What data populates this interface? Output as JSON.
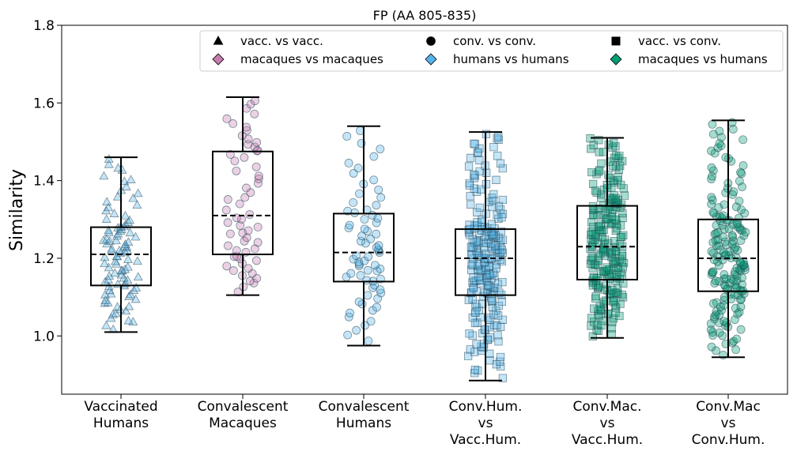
{
  "chart_data": {
    "type": "box",
    "title": "FP (AA 805-835)",
    "xlabel": "",
    "ylabel": "Similarity",
    "ylim": [
      0.85,
      1.8
    ],
    "yticks": [
      1.0,
      1.2,
      1.4,
      1.6,
      1.8
    ],
    "ytick_labels": [
      "1.0",
      "1.2",
      "1.4",
      "1.6",
      "1.8"
    ],
    "grid": false,
    "legend_position": "top-right",
    "legend": [
      {
        "label": "vacc. vs vacc.",
        "marker": "triangle",
        "color": "#000000"
      },
      {
        "label": "conv. vs conv.",
        "marker": "circle",
        "color": "#000000"
      },
      {
        "label": "vacc. vs conv.",
        "marker": "square",
        "color": "#000000"
      },
      {
        "label": "macaques vs macaques",
        "marker": "diamond",
        "color": "#c77cae"
      },
      {
        "label": "humans vs humans",
        "marker": "diamond",
        "color": "#56b4e9"
      },
      {
        "label": "macaques vs humans",
        "marker": "diamond",
        "color": "#009e73"
      }
    ],
    "groups": [
      {
        "label_lines": [
          "Vaccinated",
          "Humans"
        ],
        "marker": "triangle",
        "color": "#56b4e9",
        "n": 95,
        "min": 1.01,
        "q1": 1.13,
        "median": 1.21,
        "q3": 1.28,
        "max": 1.46,
        "seed": 11
      },
      {
        "label_lines": [
          "Convalescent",
          "Macaques"
        ],
        "marker": "circle",
        "color": "#c77cae",
        "n": 60,
        "min": 1.105,
        "q1": 1.21,
        "median": 1.31,
        "q3": 1.475,
        "max": 1.615,
        "seed": 23
      },
      {
        "label_lines": [
          "Convalescent",
          "Humans"
        ],
        "marker": "circle",
        "color": "#56b4e9",
        "n": 70,
        "min": 0.975,
        "q1": 1.14,
        "median": 1.215,
        "q3": 1.315,
        "max": 1.54,
        "seed": 37
      },
      {
        "label_lines": [
          "Conv.Hum.",
          "vs",
          "Vacc.Hum."
        ],
        "marker": "square",
        "color": "#56b4e9",
        "n": 230,
        "min": 0.885,
        "q1": 1.105,
        "median": 1.2,
        "q3": 1.275,
        "max": 1.525,
        "seed": 41
      },
      {
        "label_lines": [
          "Conv.Mac.",
          "vs",
          "Vacc.Hum."
        ],
        "marker": "square",
        "color": "#009e73",
        "n": 230,
        "min": 0.995,
        "q1": 1.145,
        "median": 1.23,
        "q3": 1.335,
        "max": 1.51,
        "seed": 53
      },
      {
        "label_lines": [
          "Conv.Mac",
          "vs",
          "Conv.Hum."
        ],
        "marker": "circle",
        "color": "#009e73",
        "n": 180,
        "min": 0.945,
        "q1": 1.115,
        "median": 1.2,
        "q3": 1.3,
        "max": 1.555,
        "seed": 67
      }
    ]
  }
}
